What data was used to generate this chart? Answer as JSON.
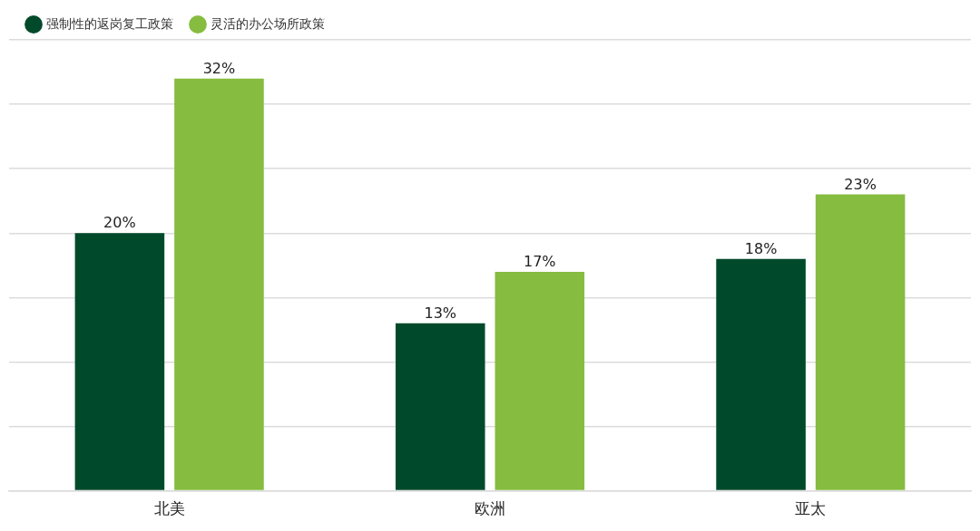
{
  "chart_data": {
    "type": "bar",
    "categories": [
      "北美",
      "欧洲",
      "亚太"
    ],
    "series": [
      {
        "name": "强制性的返岗复工政策",
        "color": "#004a2b",
        "values": [
          20,
          13,
          18
        ],
        "value_labels": [
          "20%",
          "13%",
          "18%"
        ]
      },
      {
        "name": "灵活的办公场所政策",
        "color": "#86bc40",
        "values": [
          32,
          17,
          23
        ],
        "value_labels": [
          "32%",
          "17%",
          "23%"
        ]
      }
    ],
    "ylim": [
      0,
      35
    ],
    "yticks": [
      {
        "value": 0,
        "label": null
      },
      {
        "value": 5,
        "label": null
      },
      {
        "value": 10,
        "label": null
      },
      {
        "value": 15,
        "label": null
      },
      {
        "value": 20,
        "label": null
      },
      {
        "value": 25,
        "label": null
      },
      {
        "value": 30,
        "label": null
      },
      {
        "value": 35,
        "label": null
      }
    ],
    "grid": "y",
    "legend": "top left",
    "tick_labels": "x"
  }
}
